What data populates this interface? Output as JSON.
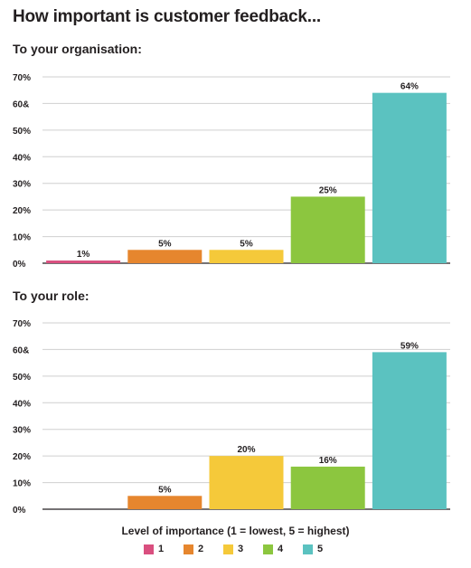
{
  "title": "How important is customer feedback...",
  "colors": {
    "1": "#d94f7f",
    "2": "#e6862e",
    "3": "#f5c93a",
    "4": "#8cc63f",
    "5": "#5bc2c0",
    "axis": "#231f20",
    "grid": "#cfcfcf"
  },
  "legend": {
    "title": "Level of importance (1 = lowest, 5 = highest)",
    "items": [
      "1",
      "2",
      "3",
      "4",
      "5"
    ]
  },
  "chart_data": [
    {
      "type": "bar",
      "title": "To your organisation:",
      "categories": [
        "1",
        "2",
        "3",
        "4",
        "5"
      ],
      "values": [
        1,
        5,
        5,
        25,
        64
      ],
      "data_labels": [
        "1%",
        "5%",
        "5%",
        "25%",
        "64%"
      ],
      "ylim": [
        0,
        70
      ],
      "y_tick_labels": [
        "0%",
        "10%",
        "20%",
        "30%",
        "40%",
        "50%",
        "60&",
        "70%"
      ],
      "grid": true
    },
    {
      "type": "bar",
      "title": "To your role:",
      "categories": [
        "1",
        "2",
        "3",
        "4",
        "5"
      ],
      "values": [
        null,
        5,
        20,
        16,
        59
      ],
      "data_labels": [
        "",
        "5%",
        "20%",
        "16%",
        "59%"
      ],
      "ylim": [
        0,
        70
      ],
      "y_tick_labels": [
        "0%",
        "10%",
        "20%",
        "30%",
        "40%",
        "50%",
        "60&",
        "70%"
      ],
      "grid": true
    }
  ]
}
